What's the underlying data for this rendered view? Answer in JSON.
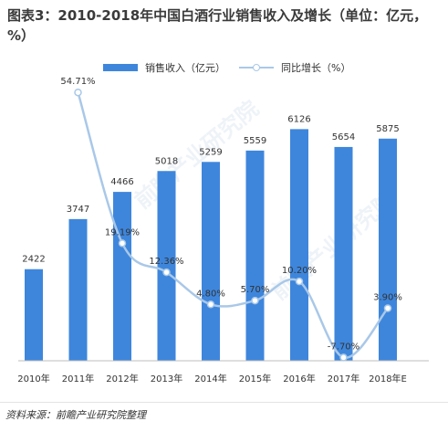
{
  "title": "图表3：2010-2018年中国白酒行业销售收入及增长（单位：亿元，%）",
  "source": "资料来源：前瞻产业研究院整理",
  "watermark": "前瞻产业研究院",
  "colors": {
    "bar": "#3e86dc",
    "line": "#a9c8e8"
  },
  "chart_data": {
    "type": "bar",
    "categories": [
      "2010年",
      "2011年",
      "2012年",
      "2013年",
      "2014年",
      "2015年",
      "2016年",
      "2017年",
      "2018年E"
    ],
    "series": [
      {
        "name": "销售收入（亿元）",
        "type": "bar",
        "axis": "left",
        "values": [
          2422,
          3747,
          4466,
          5018,
          5259,
          5559,
          6126,
          5654,
          5875
        ],
        "labels": [
          "2422",
          "3747",
          "4466",
          "5018",
          "5259",
          "5559",
          "6126",
          "5654",
          "5875"
        ]
      },
      {
        "name": "同比增长（%）",
        "type": "line",
        "axis": "right",
        "smooth": true,
        "values": [
          null,
          54.71,
          19.19,
          12.36,
          4.8,
          5.7,
          10.2,
          -7.7,
          3.9
        ],
        "labels": [
          "",
          "54.71%",
          "19.19%",
          "12.36%",
          "4.80%",
          "5.70%",
          "10.20%",
          "-7.70%",
          "3.90%"
        ]
      }
    ],
    "ylim_left": [
      0,
      8000
    ],
    "ylim_right": [
      -20,
      70
    ],
    "grid": false,
    "legend": "top-center"
  }
}
